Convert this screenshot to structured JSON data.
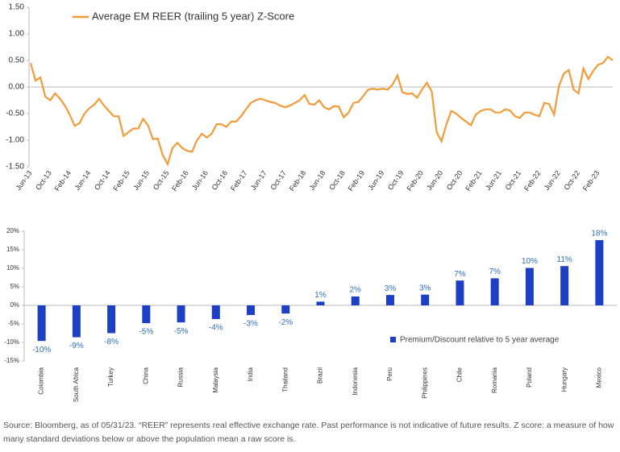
{
  "chart_data": [
    {
      "type": "line",
      "categories": [
        "Jun-13",
        null,
        null,
        null,
        "Oct-13",
        null,
        null,
        null,
        "Feb-14",
        null,
        null,
        null,
        "Jun-14",
        null,
        null,
        null,
        "Oct-14",
        null,
        null,
        null,
        "Feb-15",
        null,
        null,
        null,
        "Jun-15",
        null,
        null,
        null,
        "Oct-15",
        null,
        null,
        null,
        "Feb-16",
        null,
        null,
        null,
        "Jun-16",
        null,
        null,
        null,
        "Oct-16",
        null,
        null,
        null,
        "Feb-17",
        null,
        null,
        null,
        "Jun-17",
        null,
        null,
        null,
        "Oct-17",
        null,
        null,
        null,
        "Feb-18",
        null,
        null,
        null,
        "Jun-18",
        null,
        null,
        null,
        "Oct-18",
        null,
        null,
        null,
        "Feb-19",
        null,
        null,
        null,
        "Jun-19",
        null,
        null,
        null,
        "Oct-19",
        null,
        null,
        null,
        "Feb-20",
        null,
        null,
        null,
        "Jun-20",
        null,
        null,
        null,
        "Oct-20",
        null,
        null,
        null,
        "Feb-21",
        null,
        null,
        null,
        "Jun-21",
        null,
        null,
        null,
        "Oct-21",
        null,
        null,
        null,
        "Feb-22",
        null,
        null,
        null,
        "Jun-22",
        null,
        null,
        null,
        "Oct-22",
        null,
        null,
        null,
        "Feb-23",
        null,
        null,
        null
      ],
      "series": [
        {
          "name": "Average EM REER (trailing 5 year) Z-Score",
          "color": "#f29b3a",
          "values": [
            0.45,
            0.12,
            0.18,
            -0.18,
            -0.25,
            -0.12,
            -0.22,
            -0.35,
            -0.52,
            -0.73,
            -0.68,
            -0.5,
            -0.4,
            -0.33,
            -0.22,
            -0.35,
            -0.45,
            -0.55,
            -0.55,
            -0.92,
            -0.85,
            -0.78,
            -0.78,
            -0.6,
            -0.72,
            -0.98,
            -0.97,
            -1.28,
            -1.45,
            -1.15,
            -1.05,
            -1.15,
            -1.2,
            -1.22,
            -1.0,
            -0.88,
            -0.95,
            -0.88,
            -0.7,
            -0.7,
            -0.75,
            -0.65,
            -0.65,
            -0.55,
            -0.42,
            -0.3,
            -0.25,
            -0.22,
            -0.25,
            -0.28,
            -0.3,
            -0.35,
            -0.38,
            -0.35,
            -0.3,
            -0.25,
            -0.15,
            -0.32,
            -0.33,
            -0.25,
            -0.38,
            -0.42,
            -0.36,
            -0.37,
            -0.57,
            -0.48,
            -0.3,
            -0.28,
            -0.17,
            -0.05,
            -0.03,
            -0.05,
            -0.03,
            -0.05,
            0.05,
            0.22,
            -0.1,
            -0.13,
            -0.12,
            -0.2,
            -0.05,
            0.08,
            -0.08,
            -0.85,
            -1.02,
            -0.7,
            -0.45,
            -0.5,
            -0.58,
            -0.65,
            -0.72,
            -0.52,
            -0.45,
            -0.42,
            -0.42,
            -0.48,
            -0.48,
            -0.42,
            -0.44,
            -0.55,
            -0.58,
            -0.48,
            -0.48,
            -0.52,
            -0.55,
            -0.3,
            -0.32,
            -0.52,
            0.02,
            0.25,
            0.32,
            -0.05,
            -0.12,
            0.35,
            0.15,
            0.3,
            0.42,
            0.45,
            0.57,
            0.5
          ]
        }
      ],
      "ylim": [
        -1.5,
        1.5
      ],
      "yticks": [
        {
          "value": 1.5,
          "label": "1.50"
        },
        {
          "value": 1,
          "label": "1.00"
        },
        {
          "value": 0.5,
          "label": "0.50"
        },
        {
          "value": 0,
          "label": "0.00"
        },
        {
          "value": -0.5,
          "label": "-0.50"
        },
        {
          "value": -1,
          "label": "-1.00"
        },
        {
          "value": -1.5,
          "label": "-1.50"
        }
      ],
      "legend": "top"
    },
    {
      "type": "bar",
      "categories": [
        "Colombia",
        "South Africa",
        "Turkey",
        "China",
        "Russia",
        "Malaysia",
        "India",
        "Thailand",
        "Brazil",
        "Indonesia",
        "Peru",
        "Philippines",
        "Chile",
        "Romania",
        "Poland",
        "Hungary",
        "Mexico"
      ],
      "series": [
        {
          "name": "Premium/Discount relative to 5 year average",
          "color": "#1c3fc4",
          "values": [
            -9.6,
            -8.6,
            -7.5,
            -4.8,
            -4.6,
            -3.7,
            -2.6,
            -2.2,
            1.0,
            2.4,
            2.8,
            2.9,
            6.7,
            7.3,
            10.1,
            10.6,
            17.6
          ],
          "value_labels": [
            "-10%",
            "-9%",
            "-8%",
            "-5%",
            "-5%",
            "-4%",
            "-3%",
            "-2%",
            "1%",
            "2%",
            "3%",
            "3%",
            "7%",
            "7%",
            "10%",
            "11%",
            "18%"
          ]
        }
      ],
      "ylim": [
        -15,
        20
      ],
      "yticks": [
        {
          "value": 20,
          "label": "20%"
        },
        {
          "value": 15,
          "label": "15%"
        },
        {
          "value": 10,
          "label": "10%"
        },
        {
          "value": 5,
          "label": "5%"
        },
        {
          "value": 0,
          "label": "0%"
        },
        {
          "value": -5,
          "label": "-5%"
        },
        {
          "value": -10,
          "label": "-10%"
        },
        {
          "value": -15,
          "label": "-15%"
        }
      ],
      "legend": "right"
    }
  ],
  "footnote": "Source: Bloomberg, as of 05/31/23. “REER” represents real effective exchange rate. Past performance is not indicative of future results. Z score: a measure of how many standard deviations below or above the population mean a raw score is."
}
